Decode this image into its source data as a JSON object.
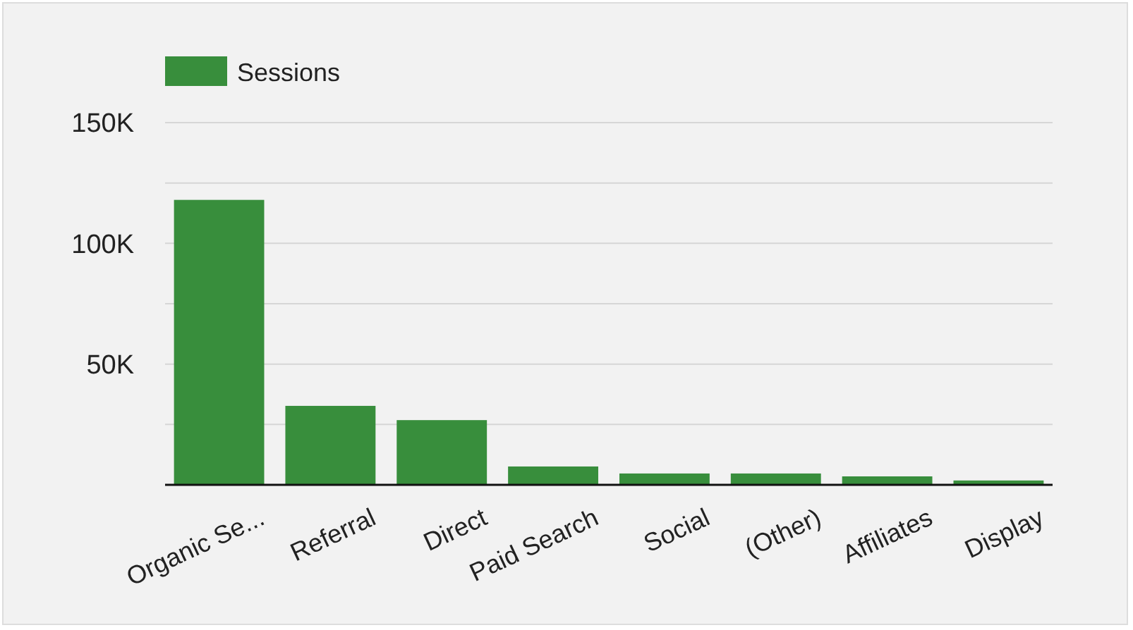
{
  "chart_data": {
    "type": "bar",
    "categories": [
      "Organic Se...",
      "Referral",
      "Direct",
      "Paid Search",
      "Social",
      "(Other)",
      "Affiliates",
      "Display"
    ],
    "series": [
      {
        "name": "Sessions",
        "color": "#388e3c",
        "values": [
          118000,
          32700,
          26800,
          7600,
          4700,
          4700,
          3500,
          1800
        ]
      }
    ],
    "ylim": [
      0,
      150000
    ],
    "yticks": [
      {
        "value": 0,
        "label": null
      },
      {
        "value": 25000,
        "label": null
      },
      {
        "value": 50000,
        "label": "50K"
      },
      {
        "value": 75000,
        "label": null
      },
      {
        "value": 100000,
        "label": "100K"
      },
      {
        "value": 125000,
        "label": null
      },
      {
        "value": 150000,
        "label": "150K"
      }
    ],
    "grid": "y",
    "legend": "top left"
  }
}
